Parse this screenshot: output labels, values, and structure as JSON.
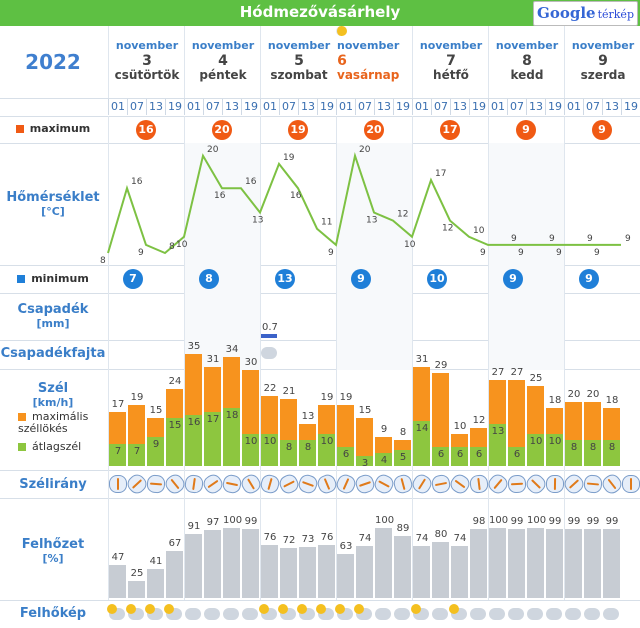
{
  "header": {
    "title": "Hódmezővásárhely",
    "map_label_1": "Google",
    "map_label_2": "térkép"
  },
  "year": "2022",
  "days": [
    {
      "month": "november",
      "day": "3",
      "weekday": "csütörtök"
    },
    {
      "month": "november",
      "day": "4",
      "weekday": "péntek"
    },
    {
      "month": "november",
      "day": "5",
      "weekday": "szombat"
    },
    {
      "month": "november",
      "day": "6",
      "weekday": "vasárnap"
    },
    {
      "month": "november",
      "day": "7",
      "weekday": "hétfő"
    },
    {
      "month": "november",
      "day": "8",
      "weekday": "kedd"
    },
    {
      "month": "november",
      "day": "9",
      "weekday": "szerda"
    }
  ],
  "hours": [
    "01",
    "07",
    "13",
    "19"
  ],
  "labels": {
    "maximum": "maximum",
    "temperature": "Hőmérséklet",
    "temperature_unit": "[°C]",
    "minimum": "minimum",
    "precip": "Csapadék",
    "precip_unit": "[mm]",
    "precip_type": "Csapadékfajta",
    "wind": "Szél",
    "wind_unit": "[km/h]",
    "gust": "maximális széllökés",
    "avg_wind": "átlagszél",
    "wind_dir": "Szélirány",
    "cloud": "Felhőzet",
    "cloud_unit": "[%]",
    "cloud_img": "Felhőkép"
  },
  "max_temps": [
    "16",
    "20",
    "19",
    "20",
    "17",
    "9",
    "9"
  ],
  "min_temps": [
    "7",
    "8",
    "13",
    "9",
    "10",
    "9",
    "9"
  ],
  "colors": {
    "green": "#5ec043",
    "max": "#f05a14",
    "min": "#1f7fd8",
    "gust": "#f7931e",
    "avg": "#8dc63f",
    "cloud": "#c7ccd3"
  },
  "temp_series": [
    8,
    16,
    9,
    8,
    10,
    20,
    16,
    16,
    13,
    19,
    16,
    11,
    9,
    20,
    13,
    12,
    10,
    17,
    12,
    10,
    9,
    9,
    9,
    9,
    9,
    9,
    9,
    9
  ],
  "precip": {
    "value": "0.7",
    "slot": 8
  },
  "gusts": [
    17,
    19,
    15,
    24,
    35,
    31,
    34,
    30,
    22,
    21,
    13,
    19,
    19,
    15,
    9,
    8,
    31,
    29,
    10,
    12,
    27,
    27,
    25,
    18,
    20,
    20,
    18
  ],
  "avg": [
    7,
    7,
    9,
    15,
    16,
    17,
    18,
    10,
    10,
    8,
    8,
    10,
    6,
    3,
    4,
    5,
    14,
    6,
    6,
    6,
    13,
    6,
    10,
    10,
    8,
    8,
    8
  ],
  "clouds": [
    47,
    25,
    41,
    67,
    91,
    97,
    100,
    99,
    76,
    72,
    73,
    76,
    63,
    74,
    100,
    89,
    74,
    80,
    74,
    98,
    100,
    99,
    100,
    99,
    99,
    99,
    99
  ]
}
